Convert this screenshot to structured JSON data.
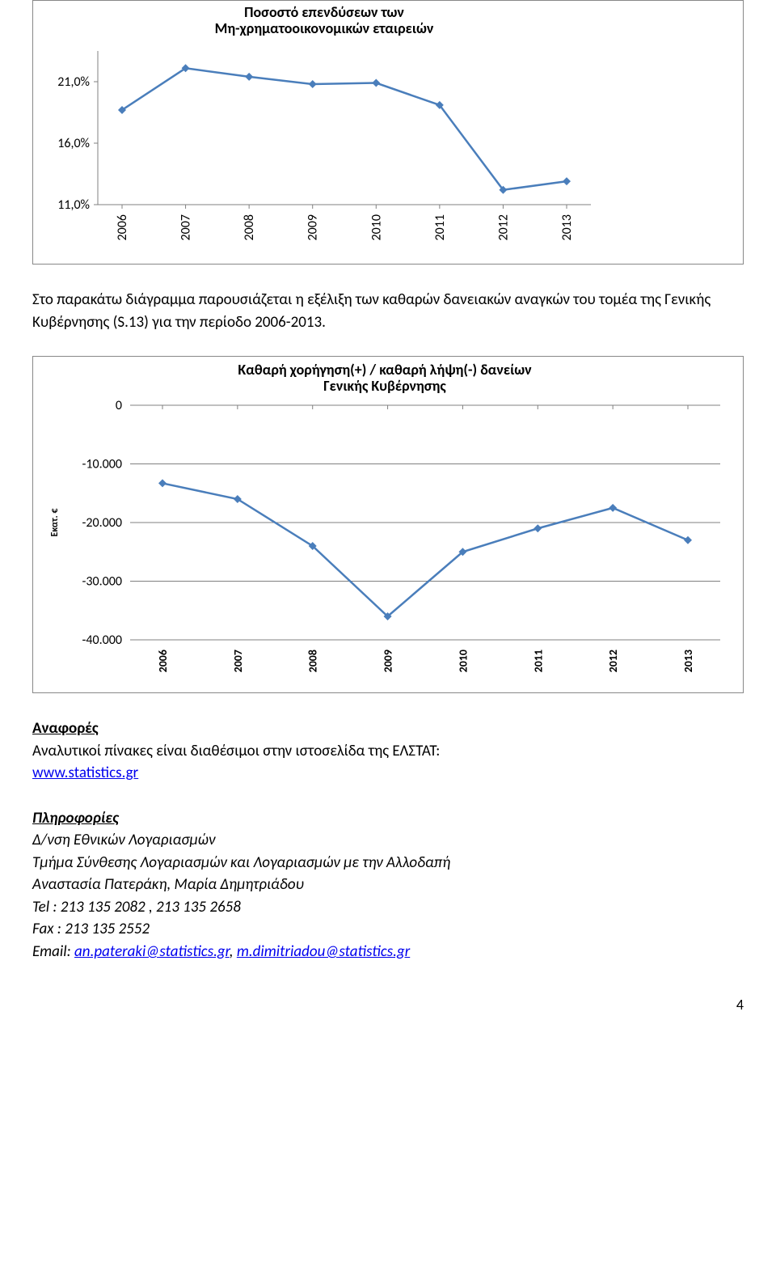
{
  "chart1": {
    "type": "line",
    "title_line1": "Ποσοστό επενδύσεων των",
    "title_line2": "Μη-χρηματοοικονομικών εταιρειών",
    "title_fontsize": 18,
    "categories": [
      "2006",
      "2007",
      "2008",
      "2009",
      "2010",
      "2011",
      "2012",
      "2013"
    ],
    "values": [
      18.7,
      22.1,
      21.4,
      20.8,
      20.9,
      19.1,
      12.2,
      12.9
    ],
    "ylim": [
      11.0,
      23.5
    ],
    "ytick_values": [
      11.0,
      16.0,
      21.0
    ],
    "ytick_labels": [
      "11,0%",
      "16,0%",
      "21,0%"
    ],
    "line_color": "#4a7ebb",
    "line_width": 2.5,
    "marker_size": 5,
    "marker_shape": "diamond",
    "marker_fill": "#4a7ebb",
    "axis_color": "#808080",
    "tick_color": "#808080",
    "text_color": "#000000",
    "plot_background": "#ffffff",
    "xlabel_fontsize": 16,
    "ylabel_fontsize": 16,
    "xlabel_rotation": -90
  },
  "para1": "Στο παρακάτω διάγραμμα παρουσιάζεται η εξέλιξη των καθαρών δανειακών αναγκών του τομέα της Γενικής Κυβέρνησης (S.13) για την περίοδο 2006-2013.",
  "chart2": {
    "type": "line",
    "title_line1": "Καθαρή χορήγηση(+) / καθαρή λήψη(-) δανείων",
    "title_line2": "Γενικής Κυβέρνησης",
    "title_fontsize": 18,
    "categories": [
      "2006",
      "2007",
      "2008",
      "2009",
      "2010",
      "2011",
      "2012",
      "2013"
    ],
    "values": [
      -13.3,
      -16.0,
      -24.0,
      -36.0,
      -25.0,
      -21.0,
      -17.5,
      -23.0
    ],
    "ylim": [
      -40.0,
      0.0
    ],
    "ytick_values": [
      -40.0,
      -30.0,
      -20.0,
      -10.0,
      0.0
    ],
    "ytick_labels": [
      "-40.000",
      "-30.000",
      "-20.000",
      "-10.000",
      "0"
    ],
    "ylabel": "Εκατ. €",
    "line_color": "#4a7ebb",
    "line_width": 2.5,
    "marker_size": 5,
    "marker_shape": "diamond",
    "marker_fill": "#4a7ebb",
    "axis_color": "#808080",
    "grid_color": "#808080",
    "text_color": "#000000",
    "plot_background": "#ffffff",
    "xlabel_fontsize": 14,
    "ylabel_fontsize": 16,
    "xlabel_rotation": -90,
    "grid_on": true
  },
  "references": {
    "head": "Αναφορές",
    "line1": "Αναλυτικοί πίνακες είναι διαθέσιμοι στην ιστοσελίδα της ΕΛΣΤΑΤ:",
    "link": "www.statistics.gr"
  },
  "info": {
    "head": "Πληροφορίες",
    "line1": "Δ/νση Εθνικών Λογαριασμών",
    "line2": "Τμήμα Σύνθεσης Λογαριασμών και Λογαριασμών με την Αλλοδαπή",
    "line3": "Αναστασία Πατεράκη, Μαρία Δημητριάδου",
    "line4": "Tel :  213 135 2082 , 213 135 2658",
    "line5": "Fax :  213 135 2552",
    "email_prefix": "Email: ",
    "email1": "an.pateraki@statistics.gr",
    "email_sep": ", ",
    "email2": "m.dimitriadou@statistics.gr"
  },
  "page_number": "4"
}
